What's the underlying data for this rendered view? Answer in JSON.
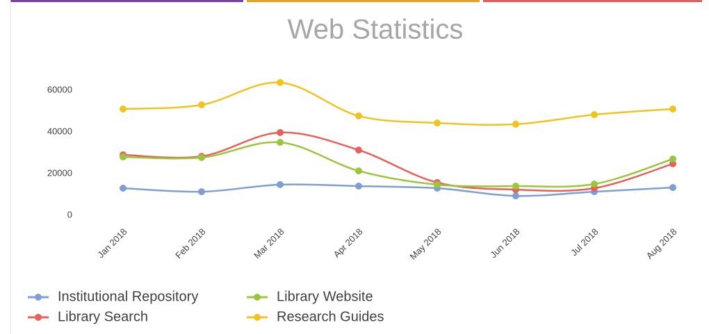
{
  "chart_data": {
    "type": "line",
    "title": "Web Statistics",
    "categories": [
      "Jan 2018",
      "Feb 2018",
      "Mar 2018",
      "Apr 2018",
      "May 2018",
      "Jun 2018",
      "Jul 2018",
      "Aug 2018"
    ],
    "series": [
      {
        "name": "Institutional Repository",
        "color": "#7f9fd0",
        "values": [
          13000,
          11300,
          14700,
          14000,
          13000,
          9300,
          11300,
          13300
        ]
      },
      {
        "name": "Library Search",
        "color": "#e8605a",
        "values": [
          29000,
          28300,
          39700,
          31300,
          15700,
          12300,
          13000,
          24700
        ]
      },
      {
        "name": "Library Website",
        "color": "#9bc53d",
        "values": [
          28000,
          27700,
          35000,
          21300,
          14700,
          14000,
          15000,
          27000
        ]
      },
      {
        "name": "Research Guides",
        "color": "#f0c420",
        "values": [
          51000,
          53000,
          63700,
          47700,
          44300,
          43700,
          48300,
          51000
        ]
      }
    ],
    "ylim": [
      0,
      70000
    ],
    "yticks": [
      0,
      20000,
      40000,
      60000
    ],
    "legend": "bottom"
  }
}
